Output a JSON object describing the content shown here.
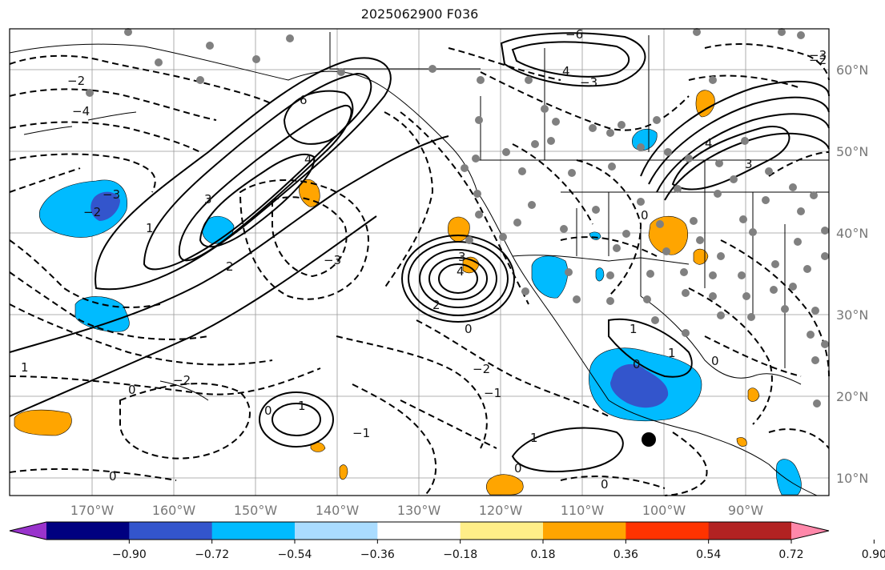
{
  "title": "2025062900 F036",
  "lon_ticks": [
    "170°W",
    "160°W",
    "150°W",
    "140°W",
    "130°W",
    "120°W",
    "110°W",
    "100°W",
    "90°W"
  ],
  "lat_ticks": [
    "60°N",
    "50°N",
    "40°N",
    "30°N",
    "20°N",
    "10°N"
  ],
  "colorbar": {
    "colors": [
      "#9933cc",
      "#000080",
      "#3355cc",
      "#00bbff",
      "#aadcff",
      "#ffffff",
      "#ffee88",
      "#ffa500",
      "#ff3300",
      "#b22222",
      "#ff88aa"
    ],
    "labels": [
      "−0.90",
      "−0.72",
      "−0.54",
      "−0.36",
      "−0.18",
      "0.18",
      "0.36",
      "0.54",
      "0.72",
      "0.90"
    ]
  },
  "contour_labels": [
    "6",
    "4",
    "3",
    "2",
    "1",
    "0",
    "−1",
    "−2",
    "−3",
    "−4",
    "−6"
  ],
  "colors": {
    "positive": "#ffa500",
    "negative": "#00bbff",
    "strong_negative": "#3355cc",
    "contour": "#000000",
    "station": "#808080",
    "grid": "#999999"
  }
}
